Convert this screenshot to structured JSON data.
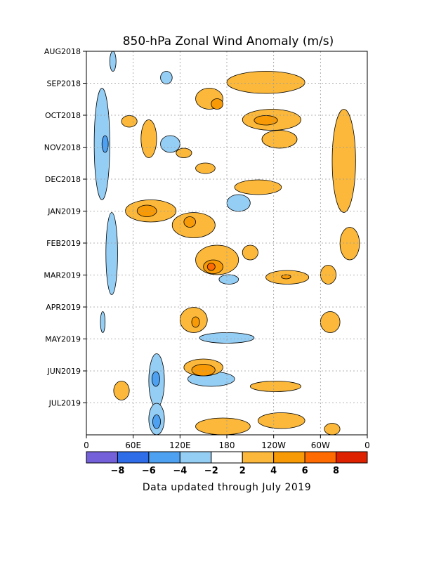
{
  "chart_data": {
    "type": "heatmap",
    "title": "850-hPa Zonal Wind Anomaly (m/s)",
    "xlabel": "",
    "ylabel": "",
    "x_ticks": [
      "0",
      "60E",
      "120E",
      "180",
      "120W",
      "60W",
      "0"
    ],
    "x_range_deg_east": [
      0,
      360
    ],
    "y_ticks": [
      "AUG2018",
      "SEP2018",
      "OCT2018",
      "NOV2018",
      "DEC2018",
      "JAN2019",
      "FEB2019",
      "MAR2019",
      "APR2019",
      "MAY2019",
      "JUN2019",
      "JUL2019"
    ],
    "y_range": [
      "2018-08-01",
      "2019-07-31"
    ],
    "grid": true,
    "colorbar": {
      "levels": [
        -8,
        -6,
        -4,
        -2,
        2,
        4,
        6,
        8
      ],
      "labels": [
        "−8",
        "−6",
        "−4",
        "−2",
        "2",
        "4",
        "6",
        "8"
      ],
      "colors": [
        "#7461d9",
        "#2e6ce8",
        "#4ea0f0",
        "#95cef5",
        "#ffffff",
        "#fbb83a",
        "#f79a05",
        "#ff6b00",
        "#de2200"
      ]
    },
    "anomaly_regions": [
      {
        "lon": [
          10,
          30
        ],
        "date": [
          "2018-09-05",
          "2018-12-20"
        ],
        "value": -3
      },
      {
        "lon": [
          20,
          28
        ],
        "date": [
          "2018-10-20",
          "2018-11-05"
        ],
        "value": -5
      },
      {
        "lon": [
          25,
          40
        ],
        "date": [
          "2019-01-01",
          "2019-03-20"
        ],
        "value": -3
      },
      {
        "lon": [
          18,
          24
        ],
        "date": [
          "2019-04-05",
          "2019-04-25"
        ],
        "value": -3
      },
      {
        "lon": [
          80,
          100
        ],
        "date": [
          "2019-05-15",
          "2019-07-05"
        ],
        "value": -3
      },
      {
        "lon": [
          84,
          94
        ],
        "date": [
          "2019-06-01",
          "2019-06-15"
        ],
        "value": -5
      },
      {
        "lon": [
          80,
          100
        ],
        "date": [
          "2019-07-01",
          "2019-07-31"
        ],
        "value": -3
      },
      {
        "lon": [
          85,
          95
        ],
        "date": [
          "2019-07-12",
          "2019-07-25"
        ],
        "value": -5
      },
      {
        "lon": [
          95,
          120
        ],
        "date": [
          "2018-10-20",
          "2018-11-05"
        ],
        "value": -3
      },
      {
        "lon": [
          180,
          210
        ],
        "date": [
          "2018-12-15",
          "2018-12-31"
        ],
        "value": -3
      },
      {
        "lon": [
          145,
          215
        ],
        "date": [
          "2019-04-25",
          "2019-05-05"
        ],
        "value": -3
      },
      {
        "lon": [
          130,
          190
        ],
        "date": [
          "2019-06-01",
          "2019-06-15"
        ],
        "value": -3
      },
      {
        "lon": [
          170,
          195
        ],
        "date": [
          "2019-03-01",
          "2019-03-10"
        ],
        "value": -3
      },
      {
        "lon": [
          95,
          110
        ],
        "date": [
          "2018-08-20",
          "2018-09-01"
        ],
        "value": -3
      },
      {
        "lon": [
          30,
          38
        ],
        "date": [
          "2018-08-01",
          "2018-08-20"
        ],
        "value": -3
      },
      {
        "lon": [
          140,
          175
        ],
        "date": [
          "2018-09-05",
          "2018-09-25"
        ],
        "value": 3
      },
      {
        "lon": [
          160,
          175
        ],
        "date": [
          "2018-09-15",
          "2018-09-25"
        ],
        "value": 5
      },
      {
        "lon": [
          200,
          275
        ],
        "date": [
          "2018-09-25",
          "2018-10-15"
        ],
        "value": 3
      },
      {
        "lon": [
          215,
          245
        ],
        "date": [
          "2018-10-01",
          "2018-10-10"
        ],
        "value": 5
      },
      {
        "lon": [
          225,
          270
        ],
        "date": [
          "2018-10-15",
          "2018-11-01"
        ],
        "value": 3
      },
      {
        "lon": [
          315,
          345
        ],
        "date": [
          "2018-09-25",
          "2019-01-01"
        ],
        "value": 3
      },
      {
        "lon": [
          180,
          280
        ],
        "date": [
          "2018-08-20",
          "2018-09-10"
        ],
        "value": 3
      },
      {
        "lon": [
          70,
          90
        ],
        "date": [
          "2018-10-05",
          "2018-11-10"
        ],
        "value": 3
      },
      {
        "lon": [
          115,
          135
        ],
        "date": [
          "2018-11-01",
          "2018-11-10"
        ],
        "value": 3
      },
      {
        "lon": [
          140,
          165
        ],
        "date": [
          "2018-11-15",
          "2018-11-25"
        ],
        "value": 3
      },
      {
        "lon": [
          190,
          250
        ],
        "date": [
          "2018-12-01",
          "2018-12-15"
        ],
        "value": 3
      },
      {
        "lon": [
          50,
          115
        ],
        "date": [
          "2018-12-20",
          "2019-01-10"
        ],
        "value": 3
      },
      {
        "lon": [
          65,
          90
        ],
        "date": [
          "2018-12-25",
          "2019-01-05"
        ],
        "value": 5
      },
      {
        "lon": [
          110,
          165
        ],
        "date": [
          "2019-01-01",
          "2019-01-25"
        ],
        "value": 3
      },
      {
        "lon": [
          125,
          140
        ],
        "date": [
          "2019-01-05",
          "2019-01-15"
        ],
        "value": 5
      },
      {
        "lon": [
          140,
          195
        ],
        "date": [
          "2019-02-01",
          "2019-03-01"
        ],
        "value": 3
      },
      {
        "lon": [
          150,
          175
        ],
        "date": [
          "2019-02-15",
          "2019-02-28"
        ],
        "value": 5
      },
      {
        "lon": [
          155,
          165
        ],
        "date": [
          "2019-02-18",
          "2019-02-25"
        ],
        "value": 7
      },
      {
        "lon": [
          200,
          220
        ],
        "date": [
          "2019-02-01",
          "2019-02-15"
        ],
        "value": 3
      },
      {
        "lon": [
          230,
          285
        ],
        "date": [
          "2019-02-25",
          "2019-03-10"
        ],
        "value": 3
      },
      {
        "lon": [
          250,
          262
        ],
        "date": [
          "2019-03-01",
          "2019-03-05"
        ],
        "value": 5
      },
      {
        "lon": [
          120,
          155
        ],
        "date": [
          "2019-04-01",
          "2019-04-25"
        ],
        "value": 3
      },
      {
        "lon": [
          135,
          145
        ],
        "date": [
          "2019-04-10",
          "2019-04-20"
        ],
        "value": 5
      },
      {
        "lon": [
          125,
          175
        ],
        "date": [
          "2019-05-20",
          "2019-06-05"
        ],
        "value": 3
      },
      {
        "lon": [
          135,
          165
        ],
        "date": [
          "2019-05-25",
          "2019-06-05"
        ],
        "value": 5
      },
      {
        "lon": [
          210,
          275
        ],
        "date": [
          "2019-06-10",
          "2019-06-20"
        ],
        "value": 3
      },
      {
        "lon": [
          140,
          210
        ],
        "date": [
          "2019-07-15",
          "2019-07-31"
        ],
        "value": 3
      },
      {
        "lon": [
          220,
          280
        ],
        "date": [
          "2019-07-10",
          "2019-07-25"
        ],
        "value": 3
      },
      {
        "lon": [
          300,
          325
        ],
        "date": [
          "2019-04-05",
          "2019-04-25"
        ],
        "value": 3
      },
      {
        "lon": [
          325,
          350
        ],
        "date": [
          "2019-01-15",
          "2019-02-15"
        ],
        "value": 3
      },
      {
        "lon": [
          300,
          320
        ],
        "date": [
          "2019-02-20",
          "2019-03-10"
        ],
        "value": 3
      },
      {
        "lon": [
          35,
          55
        ],
        "date": [
          "2019-06-10",
          "2019-06-28"
        ],
        "value": 3
      },
      {
        "lon": [
          305,
          325
        ],
        "date": [
          "2019-07-20",
          "2019-07-31"
        ],
        "value": 3
      },
      {
        "lon": [
          45,
          65
        ],
        "date": [
          "2018-10-01",
          "2018-10-12"
        ],
        "value": 3
      }
    ]
  },
  "footer": {
    "note": "Data updated through July 2019"
  }
}
